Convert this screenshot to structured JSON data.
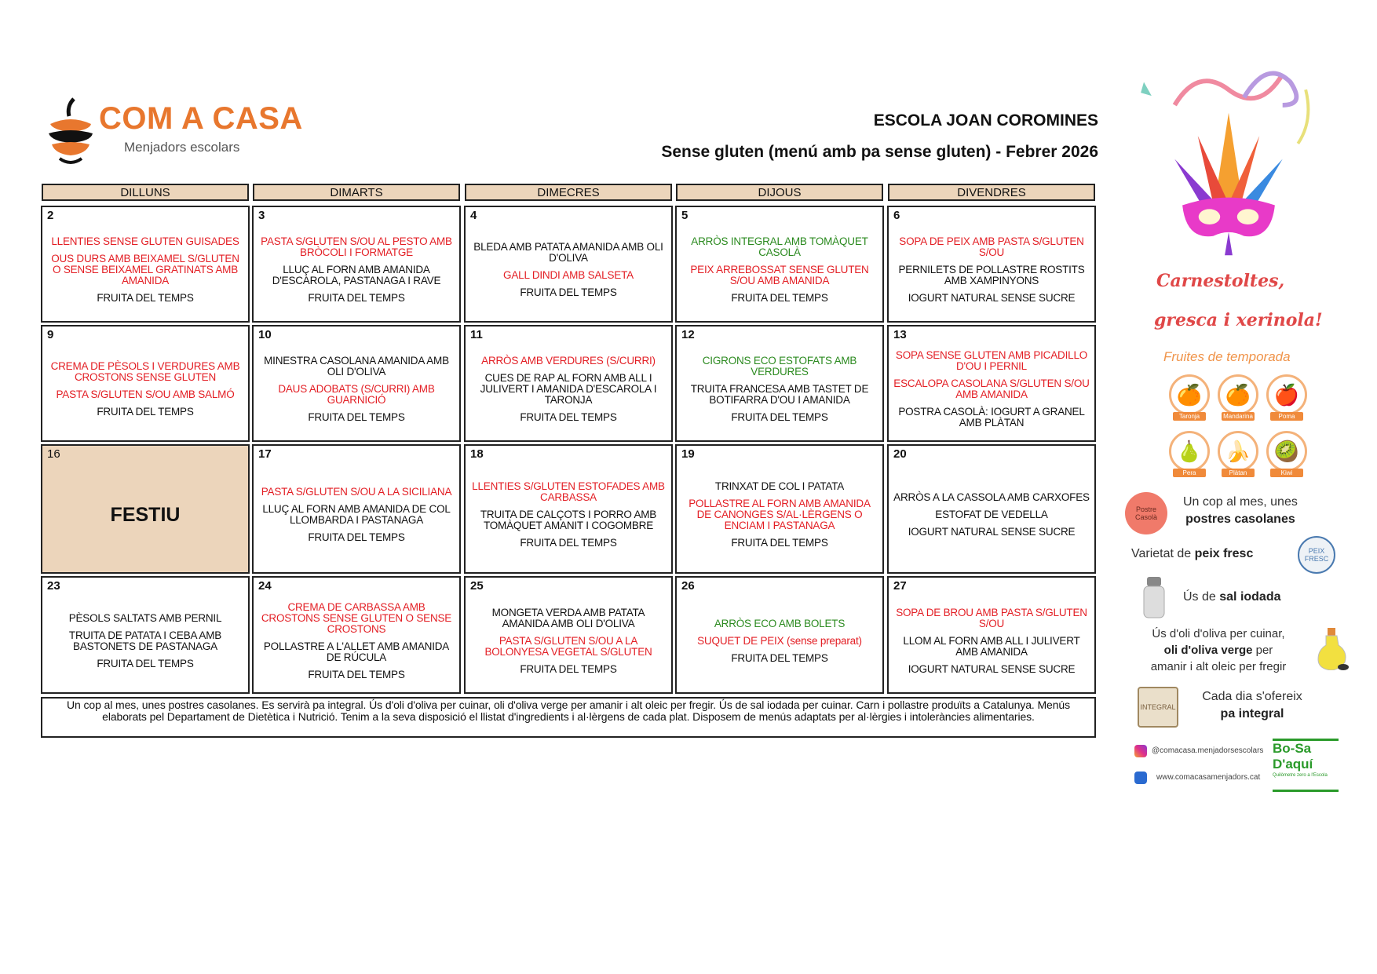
{
  "header": {
    "logo_text": "COM A CASA",
    "logo_subtitle": "Menjadors escolars",
    "school": "ESCOLA JOAN COROMINES",
    "subtitle": "Sense gluten (menú amb pa sense gluten) - Febrer 2026"
  },
  "colors": {
    "red": "#e31e24",
    "green": "#2b8a1f",
    "black": "#111111",
    "header_bg": "#ecd5bb"
  },
  "days_header": [
    "DILLUNS",
    "DIMARTS",
    "DIMECRES",
    "DIJOUS",
    "DIVENDRES"
  ],
  "weeks": [
    [
      {
        "day": "2",
        "dishes": [
          {
            "text": "LLENTIES SENSE GLUTEN GUISADES",
            "color": "red"
          },
          {
            "text": "OUS DURS AMB BEIXAMEL S/GLUTEN O SENSE BEIXAMEL GRATINATS AMB AMANIDA",
            "color": "red"
          },
          {
            "text": "FRUITA DEL TEMPS",
            "color": "black"
          }
        ]
      },
      {
        "day": "3",
        "dishes": [
          {
            "text": "PASTA S/GLUTEN S/OU AL PESTO AMB BRÒCOLI I FORMATGE",
            "color": "red"
          },
          {
            "text": "LLUÇ AL FORN AMB AMANIDA D'ESCAROLA, PASTANAGA I RAVE",
            "color": "black"
          },
          {
            "text": "FRUITA DEL TEMPS",
            "color": "black"
          }
        ]
      },
      {
        "day": "4",
        "dishes": [
          {
            "text": "BLEDA AMB PATATA AMANIDA AMB OLI D'OLIVA",
            "color": "black"
          },
          {
            "text": "GALL DINDI AMB SALSETA",
            "color": "red"
          },
          {
            "text": "FRUITA DEL TEMPS",
            "color": "black"
          }
        ]
      },
      {
        "day": "5",
        "dishes": [
          {
            "text": "ARRÒS INTEGRAL AMB TOMÀQUET CASOLÀ",
            "color": "green"
          },
          {
            "text": "PEIX ARREBOSSAT SENSE GLUTEN S/OU AMB AMANIDA",
            "color": "red"
          },
          {
            "text": "FRUITA DEL TEMPS",
            "color": "black"
          }
        ]
      },
      {
        "day": "6",
        "dishes": [
          {
            "text": "SOPA DE PEIX AMB PASTA S/GLUTEN S/OU",
            "color": "red"
          },
          {
            "text": "PERNILETS DE POLLASTRE ROSTITS AMB XAMPINYONS",
            "color": "black"
          },
          {
            "text": "IOGURT NATURAL SENSE SUCRE",
            "color": "black"
          }
        ]
      }
    ],
    [
      {
        "day": "9",
        "dishes": [
          {
            "text": "CREMA DE PÈSOLS I VERDURES AMB CROSTONS SENSE GLUTEN",
            "color": "red"
          },
          {
            "text": "PASTA S/GLUTEN S/OU AMB SALMÓ",
            "color": "red"
          },
          {
            "text": "FRUITA DEL TEMPS",
            "color": "black"
          }
        ]
      },
      {
        "day": "10",
        "dishes": [
          {
            "text": "MINESTRA CASOLANA AMANIDA AMB OLI D'OLIVA",
            "color": "black"
          },
          {
            "text": "DAUS ADOBATS (S/CURRI) AMB GUARNICIÓ",
            "color": "red"
          },
          {
            "text": "FRUITA DEL TEMPS",
            "color": "black"
          }
        ]
      },
      {
        "day": "11",
        "dishes": [
          {
            "text": "ARRÒS AMB VERDURES (S/CURRI)",
            "color": "red"
          },
          {
            "text": "CUES DE RAP AL FORN AMB ALL I JULIVERT I AMANIDA D'ESCAROLA I TARONJA",
            "color": "black"
          },
          {
            "text": "FRUITA DEL TEMPS",
            "color": "black"
          }
        ]
      },
      {
        "day": "12",
        "dishes": [
          {
            "text": "CIGRONS ECO ESTOFATS AMB VERDURES",
            "color": "green"
          },
          {
            "text": "TRUITA FRANCESA AMB TASTET DE BOTIFARRA D'OU I AMANIDA",
            "color": "black"
          },
          {
            "text": "FRUITA DEL TEMPS",
            "color": "black"
          }
        ]
      },
      {
        "day": "13",
        "dishes": [
          {
            "text": "SOPA SENSE GLUTEN AMB PICADILLO D'OU I PERNIL",
            "color": "red"
          },
          {
            "text": "ESCALOPA CASOLANA S/GLUTEN S/OU AMB AMANIDA",
            "color": "red"
          },
          {
            "text": "POSTRA CASOLÀ: IOGURT A GRANEL AMB PLÀTAN",
            "color": "black"
          }
        ]
      }
    ],
    [
      {
        "day": "16",
        "festiu": "FESTIU",
        "dishes": []
      },
      {
        "day": "17",
        "dishes": [
          {
            "text": "PASTA S/GLUTEN S/OU A LA SICILIANA",
            "color": "red"
          },
          {
            "text": "LLUÇ AL FORN AMB AMANIDA DE COL LLOMBARDA I PASTANAGA",
            "color": "black"
          },
          {
            "text": "FRUITA DEL TEMPS",
            "color": "black"
          }
        ]
      },
      {
        "day": "18",
        "dishes": [
          {
            "text": "LLENTIES S/GLUTEN ESTOFADES AMB CARBASSA",
            "color": "red"
          },
          {
            "text": "TRUITA DE CALÇOTS I PORRO AMB TOMÀQUET AMANIT I COGOMBRE",
            "color": "black"
          },
          {
            "text": "FRUITA DEL TEMPS",
            "color": "black"
          }
        ]
      },
      {
        "day": "19",
        "dishes": [
          {
            "text": "TRINXAT DE COL I PATATA",
            "color": "black"
          },
          {
            "text": "POLLASTRE AL FORN AMB AMANIDA DE CANONGES S/AL·LÈRGENS O ENCIAM I PASTANAGA",
            "color": "red"
          },
          {
            "text": "FRUITA DEL TEMPS",
            "color": "black"
          }
        ]
      },
      {
        "day": "20",
        "dishes": [
          {
            "text": "ARRÒS A LA CASSOLA AMB CARXOFES",
            "color": "black"
          },
          {
            "text": "ESTOFAT DE VEDELLA",
            "color": "black"
          },
          {
            "text": "IOGURT NATURAL SENSE SUCRE",
            "color": "black"
          }
        ]
      }
    ],
    [
      {
        "day": "23",
        "dishes": [
          {
            "text": "PÈSOLS SALTATS AMB PERNIL",
            "color": "black"
          },
          {
            "text": "TRUITA DE PATATA I CEBA AMB BASTONETS DE PASTANAGA",
            "color": "black"
          },
          {
            "text": "FRUITA DEL TEMPS",
            "color": "black"
          }
        ]
      },
      {
        "day": "24",
        "dishes": [
          {
            "text": "CREMA DE CARBASSA AMB CROSTONS SENSE GLUTEN O SENSE CROSTONS",
            "color": "red"
          },
          {
            "text": "POLLASTRE A L'ALLET AMB AMANIDA DE RÚCULA",
            "color": "black"
          },
          {
            "text": "FRUITA DEL TEMPS",
            "color": "black"
          }
        ]
      },
      {
        "day": "25",
        "dishes": [
          {
            "text": "MONGETA VERDA AMB PATATA AMANIDA AMB OLI D'OLIVA",
            "color": "black"
          },
          {
            "text": "PASTA S/GLUTEN S/OU A LA BOLONYESA VEGETAL S/GLUTEN",
            "color": "red"
          },
          {
            "text": "FRUITA DEL TEMPS",
            "color": "black"
          }
        ]
      },
      {
        "day": "26",
        "dishes": [
          {
            "text": "ARRÒS ECO AMB BOLETS",
            "color": "green"
          },
          {
            "text": "SUQUET DE PEIX (sense preparat)",
            "color": "red"
          },
          {
            "text": "FRUITA DEL TEMPS",
            "color": "black"
          }
        ]
      },
      {
        "day": "27",
        "dishes": [
          {
            "text": "SOPA DE BROU AMB PASTA S/GLUTEN S/OU",
            "color": "red"
          },
          {
            "text": "LLOM AL FORN AMB ALL I JULIVERT AMB AMANIDA",
            "color": "black"
          },
          {
            "text": "IOGURT NATURAL SENSE SUCRE",
            "color": "black"
          }
        ]
      }
    ]
  ],
  "footer": "Un cop al mes, unes postres casolanes. Es servirà pa integral. Ús d'oli d'oliva per cuinar, oli d'oliva verge per amanir i alt oleic per fregir. Ús de sal iodada per cuinar. Carn i pollastre produïts a Catalunya. Menús elaborats pel Departament de Dietètica i Nutrició. Tenim a la seva disposició el llistat d'ingredients i al·lèrgens de cada plat. Disposem de menús adaptats per al·lèrgies i intoleràncies alimentaries.",
  "sidebar": {
    "carnival_line1": "Carnestoltes,",
    "carnival_line2": "gresca i xerinola!",
    "fruits_title": "Fruites de temporada",
    "fruits": [
      {
        "label": "Taronja",
        "icon": "orange-icon"
      },
      {
        "label": "Mandarina",
        "icon": "mandarin-icon"
      },
      {
        "label": "Poma",
        "icon": "apple-icon"
      },
      {
        "label": "Pera",
        "icon": "pear-icon"
      },
      {
        "label": "Plàtan",
        "icon": "banana-icon"
      },
      {
        "label": "Kiwi",
        "icon": "kiwi-icon"
      }
    ],
    "postres_line1": "Un cop al mes, unes",
    "postres_line2": "postres casolanes",
    "postres_badge": "Postre Casolà",
    "peix_pre": "Varietat de ",
    "peix_bold": "peix fresc",
    "peix_badge": "PEIX FRESC",
    "sal_pre": "Ús de ",
    "sal_bold": "sal iodada",
    "oli_line1": "Ús d'oli d'oliva per cuinar,",
    "oli_bold": "oli d'oliva verge",
    "oli_after": " per",
    "oli_line3": "amanir i alt oleic per fregir",
    "pa_line1": "Cada dia s'ofereix",
    "pa_line2": "pa integral",
    "pa_badge": "INTEGRAL",
    "instagram": "@comacasa.menjadorsescolars",
    "website": "www.comacasamenjadors.cat",
    "km0_logo": "Bo-Sa D'aquí",
    "km0_sub": "Quilòmetre zero a l'Escola"
  }
}
